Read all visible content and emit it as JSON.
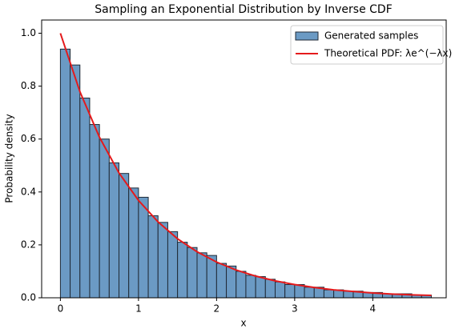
{
  "chart_data": {
    "type": "histogram",
    "title": "Sampling an Exponential Distribution by Inverse CDF",
    "xlabel": "x",
    "ylabel": "Probability density",
    "xlim": [
      -0.24,
      4.94
    ],
    "ylim": [
      0,
      1.05
    ],
    "xticks": [
      0,
      1,
      2,
      3,
      4
    ],
    "yticks": [
      {
        "value": 0,
        "label": "0.0"
      },
      0.2,
      0.4,
      0.6,
      0.8,
      {
        "value": 1,
        "label": "1.0"
      }
    ],
    "legend": "upper right",
    "series": [
      {
        "name": "Generated samples",
        "type": "histogram",
        "color": "#6b9ac4",
        "edgecolor": "#1f2a36",
        "bins": [
          0,
          0.125,
          0.25,
          0.375,
          0.5,
          0.625,
          0.75,
          0.875,
          1,
          1.125,
          1.25,
          1.375,
          1.5,
          1.625,
          1.75,
          1.875,
          2,
          2.125,
          2.25,
          2.375,
          2.5,
          2.625,
          2.75,
          2.875,
          3,
          3.125,
          3.25,
          3.375,
          3.5,
          3.625,
          3.75,
          3.875,
          4,
          4.125,
          4.25,
          4.375,
          4.5,
          4.625,
          4.75
        ],
        "values": [
          0.94,
          0.88,
          0.755,
          0.655,
          0.6,
          0.51,
          0.47,
          0.415,
          0.38,
          0.31,
          0.285,
          0.25,
          0.21,
          0.19,
          0.17,
          0.16,
          0.13,
          0.12,
          0.1,
          0.085,
          0.08,
          0.07,
          0.06,
          0.05,
          0.05,
          0.04,
          0.04,
          0.03,
          0.03,
          0.025,
          0.025,
          0.02,
          0.02,
          0.015,
          0.015,
          0.015,
          0.01,
          0.01
        ]
      },
      {
        "name": "Theoretical PDF: λe^(−λx)",
        "type": "line",
        "color": "#e41a1c",
        "x": [
          0,
          0.25,
          0.5,
          0.75,
          1,
          1.25,
          1.5,
          1.75,
          2,
          2.25,
          2.5,
          2.75,
          3,
          3.25,
          3.5,
          3.75,
          4,
          4.25,
          4.5,
          4.75
        ],
        "values": [
          1,
          0.779,
          0.607,
          0.472,
          0.368,
          0.287,
          0.223,
          0.174,
          0.135,
          0.105,
          0.082,
          0.064,
          0.05,
          0.039,
          0.03,
          0.024,
          0.018,
          0.014,
          0.011,
          0.009
        ]
      }
    ]
  }
}
